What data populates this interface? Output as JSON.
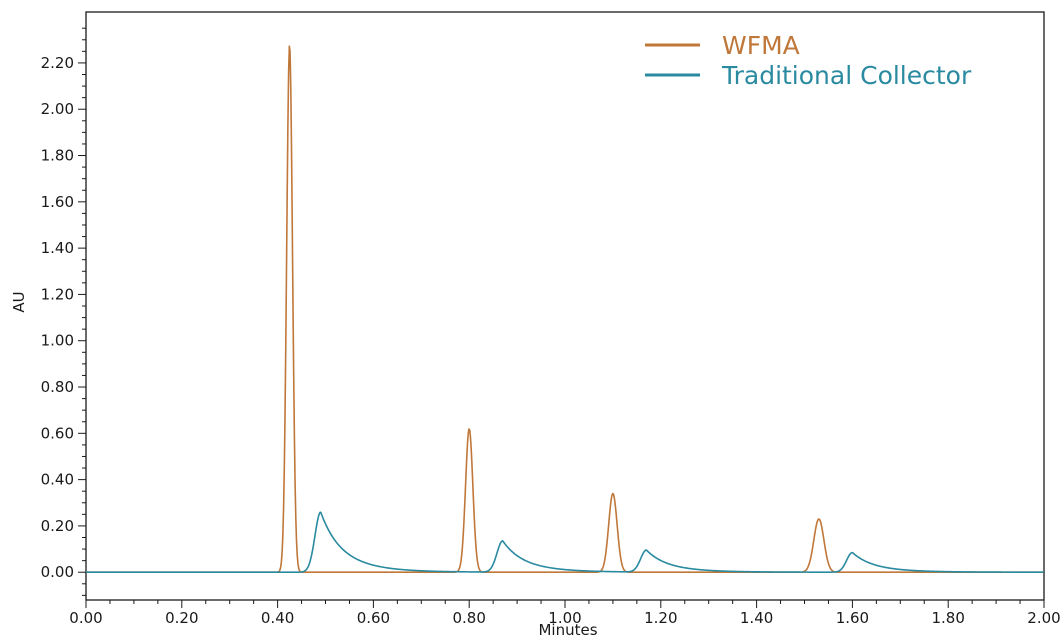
{
  "chart_data": {
    "type": "line",
    "xlabel": "Minutes",
    "ylabel": "AU",
    "xlim": [
      0.0,
      2.0
    ],
    "ylim": [
      -0.12,
      2.42
    ],
    "x_ticks": [
      "0.00",
      "0.20",
      "0.40",
      "0.60",
      "0.80",
      "1.00",
      "1.20",
      "1.40",
      "1.60",
      "1.80",
      "2.00"
    ],
    "y_ticks": [
      "0.00",
      "0.20",
      "0.40",
      "0.60",
      "0.80",
      "1.00",
      "1.20",
      "1.40",
      "1.60",
      "1.80",
      "2.00",
      "2.20"
    ],
    "grid": false,
    "legend_position": "top-right",
    "series": [
      {
        "name": "WFMA",
        "color": "#c0773a",
        "peaks": [
          {
            "x": 0.425,
            "y": 2.28
          },
          {
            "x": 0.8,
            "y": 0.62
          },
          {
            "x": 1.1,
            "y": 0.34
          },
          {
            "x": 1.53,
            "y": 0.23
          }
        ]
      },
      {
        "name": "Traditional Collector",
        "color": "#2a8aa0",
        "peaks": [
          {
            "x": 0.49,
            "y": 0.26
          },
          {
            "x": 0.87,
            "y": 0.135
          },
          {
            "x": 1.17,
            "y": 0.095
          },
          {
            "x": 1.6,
            "y": 0.085
          }
        ]
      }
    ]
  }
}
